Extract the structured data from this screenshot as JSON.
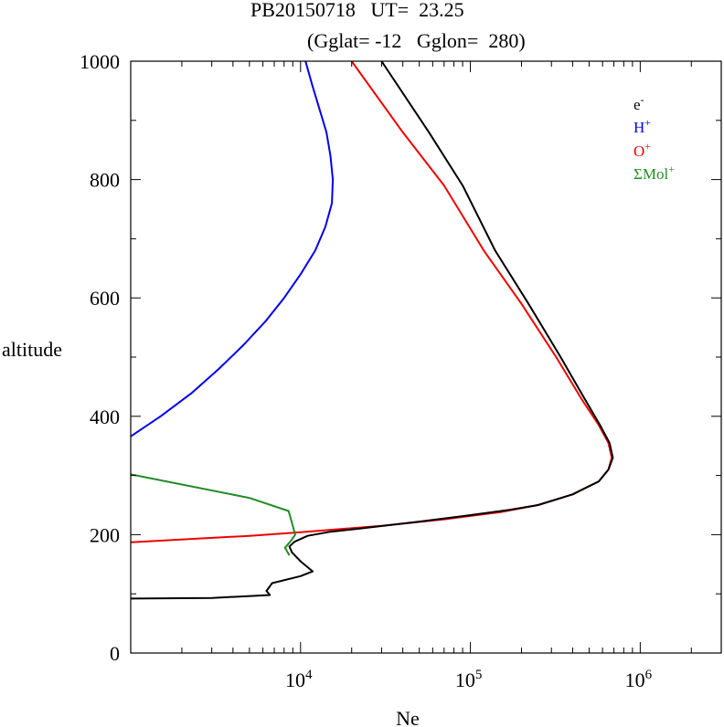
{
  "title_line1": "PB20150718   UT=  23.25",
  "title_line2": "(Gglat= -12   Gglon=  280)",
  "chart_data": {
    "type": "line",
    "xscale": "log",
    "xlim": [
      1000,
      3000000
    ],
    "ylim": [
      0,
      1000
    ],
    "xlabel": "Ne",
    "ylabel": "altitude",
    "yticks": [
      0,
      200,
      400,
      600,
      800,
      1000
    ],
    "xticks": [
      {
        "value": 10000,
        "base": "10",
        "exp": "4"
      },
      {
        "value": 100000,
        "base": "10",
        "exp": "5"
      },
      {
        "value": 1000000,
        "base": "10",
        "exp": "6"
      }
    ],
    "legend": [
      {
        "base": "e",
        "sup": "-",
        "color": "#000000"
      },
      {
        "base": "H",
        "sup": "+",
        "color": "#0000ee"
      },
      {
        "base": "O",
        "sup": "+",
        "color": "#ee0000"
      },
      {
        "base": "ΣMol",
        "sup": "+",
        "color": "#228b22"
      }
    ],
    "series": [
      {
        "name": "H+",
        "color": "#0000ee",
        "points": [
          [
            1000,
            366
          ],
          [
            1500,
            400
          ],
          [
            2300,
            440
          ],
          [
            3300,
            480
          ],
          [
            4600,
            520
          ],
          [
            6200,
            560
          ],
          [
            8000,
            600
          ],
          [
            10000,
            640
          ],
          [
            12200,
            680
          ],
          [
            14000,
            720
          ],
          [
            15300,
            760
          ],
          [
            15500,
            800
          ],
          [
            15000,
            840
          ],
          [
            14200,
            880
          ],
          [
            12900,
            920
          ],
          [
            11700,
            960
          ],
          [
            10700,
            1000
          ]
        ]
      },
      {
        "name": "O+",
        "color": "#ee0000",
        "points": [
          [
            1000,
            187
          ],
          [
            5000,
            198
          ],
          [
            10000,
            204
          ],
          [
            30000,
            215
          ],
          [
            70000,
            226
          ],
          [
            150000,
            238
          ],
          [
            250000,
            250
          ],
          [
            400000,
            268
          ],
          [
            570000,
            290
          ],
          [
            650000,
            310
          ],
          [
            680000,
            330
          ],
          [
            650000,
            355
          ],
          [
            570000,
            385
          ],
          [
            450000,
            430
          ],
          [
            320000,
            500
          ],
          [
            200000,
            590
          ],
          [
            120000,
            680
          ],
          [
            70000,
            790
          ],
          [
            40000,
            880
          ],
          [
            20000,
            1000
          ]
        ]
      },
      {
        "name": "ΣMol+",
        "color": "#228b22",
        "points": [
          [
            1000,
            302
          ],
          [
            5000,
            262
          ],
          [
            8500,
            240
          ],
          [
            8900,
            220
          ],
          [
            9300,
            200
          ],
          [
            8800,
            190
          ],
          [
            8100,
            178
          ],
          [
            8600,
            165
          ]
        ]
      },
      {
        "name": "e-",
        "color": "#000000",
        "points": [
          [
            1000,
            92
          ],
          [
            3000,
            93
          ],
          [
            6600,
            98
          ],
          [
            6300,
            105
          ],
          [
            6800,
            118
          ],
          [
            10000,
            130
          ],
          [
            11800,
            138
          ],
          [
            10000,
            155
          ],
          [
            8900,
            170
          ],
          [
            8600,
            180
          ],
          [
            9200,
            188
          ],
          [
            11000,
            198
          ],
          [
            15000,
            205
          ],
          [
            22000,
            210
          ],
          [
            50000,
            222
          ],
          [
            100000,
            233
          ],
          [
            170000,
            242
          ],
          [
            250000,
            250
          ],
          [
            400000,
            268
          ],
          [
            570000,
            290
          ],
          [
            650000,
            310
          ],
          [
            690000,
            330
          ],
          [
            660000,
            355
          ],
          [
            580000,
            385
          ],
          [
            470000,
            430
          ],
          [
            340000,
            500
          ],
          [
            220000,
            590
          ],
          [
            140000,
            680
          ],
          [
            90000,
            790
          ],
          [
            57000,
            880
          ],
          [
            30000,
            1000
          ]
        ]
      }
    ]
  }
}
